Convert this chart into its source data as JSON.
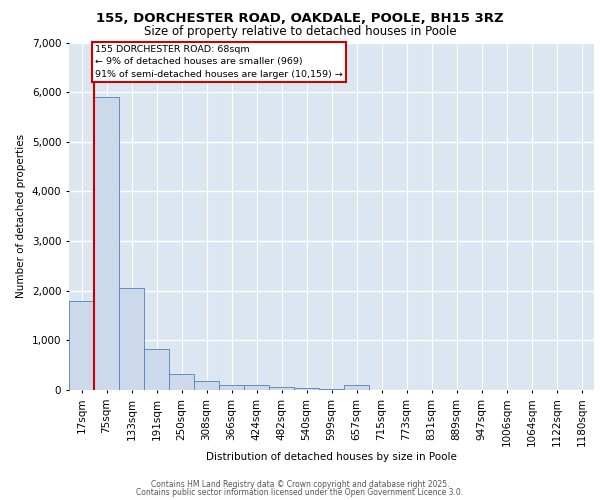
{
  "title1": "155, DORCHESTER ROAD, OAKDALE, POOLE, BH15 3RZ",
  "title2": "Size of property relative to detached houses in Poole",
  "xlabel": "Distribution of detached houses by size in Poole",
  "ylabel": "Number of detached properties",
  "categories": [
    "17sqm",
    "75sqm",
    "133sqm",
    "191sqm",
    "250sqm",
    "308sqm",
    "366sqm",
    "424sqm",
    "482sqm",
    "540sqm",
    "599sqm",
    "657sqm",
    "715sqm",
    "773sqm",
    "831sqm",
    "889sqm",
    "947sqm",
    "1006sqm",
    "1064sqm",
    "1122sqm",
    "1180sqm"
  ],
  "values": [
    1800,
    5900,
    2060,
    830,
    330,
    175,
    110,
    95,
    60,
    50,
    30,
    95,
    0,
    0,
    0,
    0,
    0,
    0,
    0,
    0,
    0
  ],
  "bar_color": "#ccd9ea",
  "bar_edge_color": "#4f81bd",
  "red_line_color": "#cc0000",
  "annotation_text": "155 DORCHESTER ROAD: 68sqm\n← 9% of detached houses are smaller (969)\n91% of semi-detached houses are larger (10,159) →",
  "annotation_box_color": "#ffffff",
  "annotation_box_edge": "#cc0000",
  "ylim": [
    0,
    7000
  ],
  "background_color": "#dce6f1",
  "grid_color": "#ffffff",
  "fig_background": "#ffffff",
  "footer1": "Contains HM Land Registry data © Crown copyright and database right 2025.",
  "footer2": "Contains public sector information licensed under the Open Government Licence 3.0."
}
